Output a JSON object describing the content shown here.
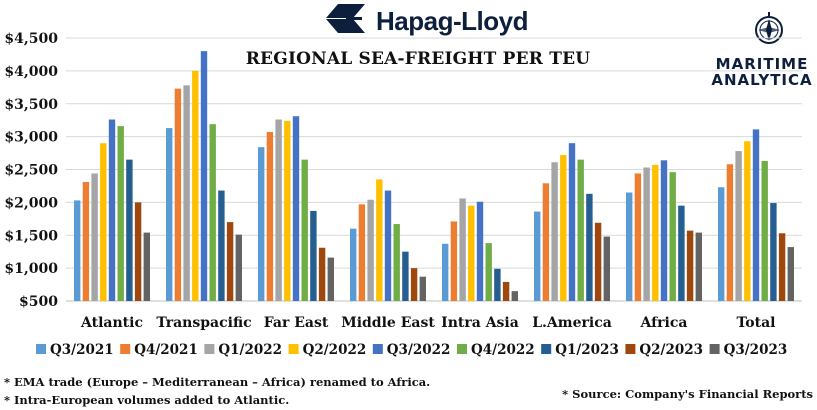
{
  "header": {
    "brand": "Hapag-Lloyd",
    "title": "REGIONAL SEA-FREIGHT PER TEU"
  },
  "watermark": {
    "line1": "MARITIME",
    "line2": "ANALYTICA"
  },
  "notes": {
    "note1": "* EMA trade (Europe – Mediterranean – Africa) renamed to Africa.",
    "note2": "* Intra-European volumes added to Atlantic.",
    "source": "* Source: Company's Financial Reports"
  },
  "colors": {
    "brand": "#0d1f3c",
    "hapag_orange": "#f26522",
    "grid": "#d9d9d9"
  },
  "chart_data": {
    "type": "bar",
    "title": "REGIONAL SEA-FREIGHT PER TEU",
    "xlabel": "",
    "ylabel": "",
    "ylim": [
      500,
      4500
    ],
    "yticks": [
      500,
      1000,
      1500,
      2000,
      2500,
      3000,
      3500,
      4000,
      4500
    ],
    "ytick_labels": [
      "$500",
      "$1,000",
      "$1,500",
      "$2,000",
      "$2,500",
      "$3,000",
      "$3,500",
      "$4,000",
      "$4,500"
    ],
    "grid": true,
    "legend_position": "bottom",
    "categories": [
      "Atlantic",
      "Transpacific",
      "Far East",
      "Middle East",
      "Intra Asia",
      "L.America",
      "Africa",
      "Total"
    ],
    "series": [
      {
        "name": "Q3/2021",
        "color": "#5b9bd5",
        "values": [
          2030,
          3130,
          2840,
          1600,
          1370,
          1860,
          2150,
          2230
        ]
      },
      {
        "name": "Q4/2021",
        "color": "#ed7d31",
        "values": [
          2310,
          3730,
          3070,
          1970,
          1710,
          2290,
          2440,
          2580
        ]
      },
      {
        "name": "Q1/2022",
        "color": "#a5a5a5",
        "values": [
          2440,
          3780,
          3260,
          2040,
          2060,
          2610,
          2530,
          2780
        ]
      },
      {
        "name": "Q2/2022",
        "color": "#ffc000",
        "values": [
          2900,
          4000,
          3240,
          2350,
          1950,
          2720,
          2570,
          2930
        ]
      },
      {
        "name": "Q3/2022",
        "color": "#4472c4",
        "values": [
          3260,
          4300,
          3310,
          2180,
          2010,
          2900,
          2640,
          3110
        ]
      },
      {
        "name": "Q4/2022",
        "color": "#70ad47",
        "values": [
          3160,
          3190,
          2650,
          1670,
          1380,
          2650,
          2460,
          2630
        ]
      },
      {
        "name": "Q1/2023",
        "color": "#255e91",
        "values": [
          2650,
          2180,
          1870,
          1250,
          990,
          2130,
          1950,
          1990
        ]
      },
      {
        "name": "Q2/2023",
        "color": "#9e480e",
        "values": [
          2000,
          1700,
          1310,
          1000,
          790,
          1690,
          1570,
          1530
        ]
      },
      {
        "name": "Q3/2023",
        "color": "#636363",
        "values": [
          1540,
          1510,
          1160,
          870,
          650,
          1480,
          1540,
          1320
        ]
      }
    ]
  }
}
